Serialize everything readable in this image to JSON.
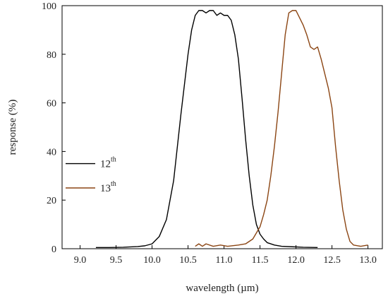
{
  "chart_data": {
    "type": "line",
    "title": "",
    "xlabel": "wavelength (µm)",
    "ylabel": "response (%)",
    "xlim": [
      8.75,
      13.2
    ],
    "ylim": [
      0,
      100
    ],
    "xticks": [
      "9.0",
      "9.5",
      "10.0",
      "10.5",
      "11.0",
      "11.5",
      "12.0",
      "12.5",
      "13.0"
    ],
    "yticks": [
      "0",
      "20",
      "40",
      "60",
      "80",
      "100"
    ],
    "grid": false,
    "legend_position": "left",
    "colors": {
      "12": "#000000",
      "13": "#8b4513"
    },
    "series": [
      {
        "key": "12",
        "base": "12",
        "sup": "th",
        "points": [
          [
            9.22,
            0.5
          ],
          [
            9.4,
            0.5
          ],
          [
            9.6,
            0.6
          ],
          [
            9.8,
            0.9
          ],
          [
            9.9,
            1.2
          ],
          [
            10.0,
            2
          ],
          [
            10.1,
            5
          ],
          [
            10.2,
            12
          ],
          [
            10.3,
            28
          ],
          [
            10.4,
            55
          ],
          [
            10.5,
            80
          ],
          [
            10.55,
            90
          ],
          [
            10.6,
            96
          ],
          [
            10.65,
            98
          ],
          [
            10.7,
            98
          ],
          [
            10.75,
            97
          ],
          [
            10.8,
            98
          ],
          [
            10.85,
            98
          ],
          [
            10.9,
            96
          ],
          [
            10.95,
            97
          ],
          [
            11.0,
            96
          ],
          [
            11.05,
            96
          ],
          [
            11.1,
            94
          ],
          [
            11.15,
            88
          ],
          [
            11.2,
            78
          ],
          [
            11.25,
            62
          ],
          [
            11.3,
            45
          ],
          [
            11.35,
            30
          ],
          [
            11.4,
            18
          ],
          [
            11.45,
            10
          ],
          [
            11.5,
            6
          ],
          [
            11.55,
            4
          ],
          [
            11.6,
            2.5
          ],
          [
            11.7,
            1.5
          ],
          [
            11.8,
            1
          ],
          [
            11.95,
            0.8
          ],
          [
            12.1,
            0.6
          ],
          [
            12.3,
            0.5
          ]
        ]
      },
      {
        "key": "13",
        "base": "13",
        "sup": "th",
        "points": [
          [
            10.6,
            1
          ],
          [
            10.65,
            2
          ],
          [
            10.7,
            1
          ],
          [
            10.75,
            2
          ],
          [
            10.85,
            1
          ],
          [
            10.95,
            1.5
          ],
          [
            11.05,
            1
          ],
          [
            11.2,
            1.5
          ],
          [
            11.3,
            2
          ],
          [
            11.4,
            4
          ],
          [
            11.5,
            9
          ],
          [
            11.55,
            14
          ],
          [
            11.6,
            20
          ],
          [
            11.65,
            30
          ],
          [
            11.7,
            42
          ],
          [
            11.75,
            56
          ],
          [
            11.8,
            72
          ],
          [
            11.85,
            88
          ],
          [
            11.9,
            97
          ],
          [
            11.95,
            98
          ],
          [
            12.0,
            98
          ],
          [
            12.05,
            95
          ],
          [
            12.1,
            92
          ],
          [
            12.15,
            88
          ],
          [
            12.2,
            83
          ],
          [
            12.25,
            82
          ],
          [
            12.3,
            83
          ],
          [
            12.35,
            78
          ],
          [
            12.4,
            72
          ],
          [
            12.45,
            66
          ],
          [
            12.5,
            58
          ],
          [
            12.55,
            42
          ],
          [
            12.6,
            28
          ],
          [
            12.65,
            16
          ],
          [
            12.7,
            8
          ],
          [
            12.75,
            3
          ],
          [
            12.8,
            1.5
          ],
          [
            12.9,
            1
          ],
          [
            13.0,
            1.5
          ]
        ]
      }
    ]
  }
}
